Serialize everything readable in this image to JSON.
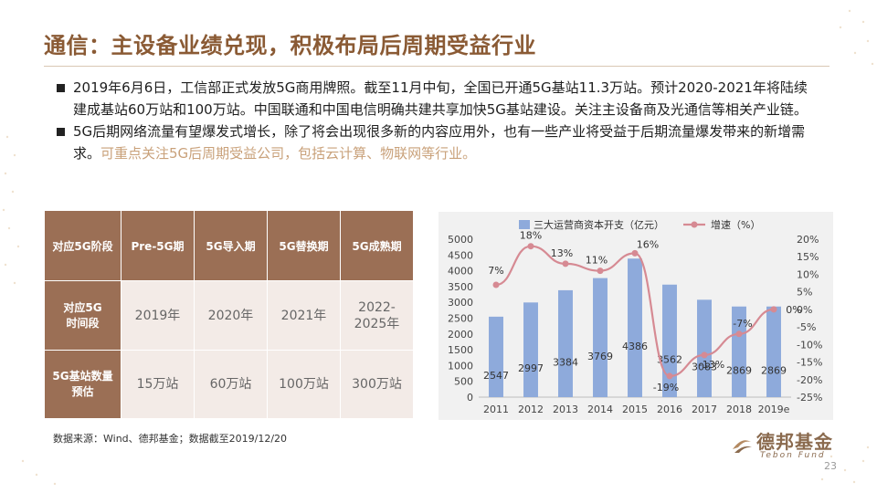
{
  "title": "通信：主设备业绩兑现，积极布局后周期受益行业",
  "bullets": [
    {
      "text": "2019年6月6日，工信部正式发放5G商用牌照。截至11月中旬，全国已开通5G基站11.3万站。预计2020-2021年将陆续建成基站60万站和100万站。中国联通和中国电信明确共建共享加快5G基站建设。关注主设备商及光通信等相关产业链。",
      "highlight": ""
    },
    {
      "text": "5G后期网络流量有望爆发式增长，除了将会出现很多新的内容应用外，也有一些产业将受益于后期流量爆发带来的新增需求。",
      "highlight": "可重点关注5G后周期受益公司，包括云计算、物联网等行业。"
    }
  ],
  "table": {
    "header": [
      "对应5G阶段",
      "Pre-5G期",
      "5G导入期",
      "5G替换期",
      "5G成熟期"
    ],
    "rows": [
      {
        "label": "对应5G\n时间段",
        "cells": [
          "2019年",
          "2020年",
          "2021年",
          "2022-2025年"
        ]
      },
      {
        "label": "5G基站数量\n预估",
        "cells": [
          "15万站",
          "60万站",
          "100万站",
          "300万站"
        ]
      }
    ]
  },
  "colors": {
    "bar": "#8eaadb",
    "line": "#d68a93",
    "title": "#8a5a34",
    "table_head": "#9b6f55",
    "table_cell": "#f3ebe7",
    "highlight": "#c9a17a"
  },
  "chart_data": {
    "type": "bar",
    "categories": [
      "2011",
      "2012",
      "2013",
      "2014",
      "2015",
      "2016",
      "2017",
      "2018",
      "2019e"
    ],
    "series": [
      {
        "name": "三大运营商资本开支（亿元）",
        "type": "bar",
        "axis": "left",
        "values": [
          2547,
          2997,
          3384,
          3769,
          4386,
          3562,
          3083,
          2869,
          2869
        ],
        "labels": [
          "2547",
          "2997",
          "3384",
          "3769",
          "4386",
          "3562",
          "3083",
          "2869",
          "2869"
        ]
      },
      {
        "name": "增速（%）",
        "type": "line",
        "axis": "right",
        "values": [
          7,
          18,
          13,
          11,
          16,
          -19,
          -13,
          -7,
          0
        ],
        "labels": [
          "7%",
          "18%",
          "13%",
          "11%",
          "16%",
          "-19%",
          "-13%",
          "-7%",
          "0%"
        ]
      }
    ],
    "ylim_left": [
      0,
      5000
    ],
    "yticks_left": [
      "0",
      "500",
      "1000",
      "1500",
      "2000",
      "2500",
      "3000",
      "3500",
      "4000",
      "4500",
      "5000"
    ],
    "ylim_right": [
      -25,
      20
    ],
    "yticks_right": [
      "-25%",
      "-20%",
      "-15%",
      "-10%",
      "-5%",
      "0%",
      "5%",
      "10%",
      "15%",
      "20%"
    ],
    "legend_position": "top",
    "grid": false
  },
  "source": "数据来源：Wind、德邦基金；数据截至2019/12/20",
  "logo": {
    "cn": "德邦基金",
    "en": "Tebon Fund"
  },
  "page_number": "23"
}
